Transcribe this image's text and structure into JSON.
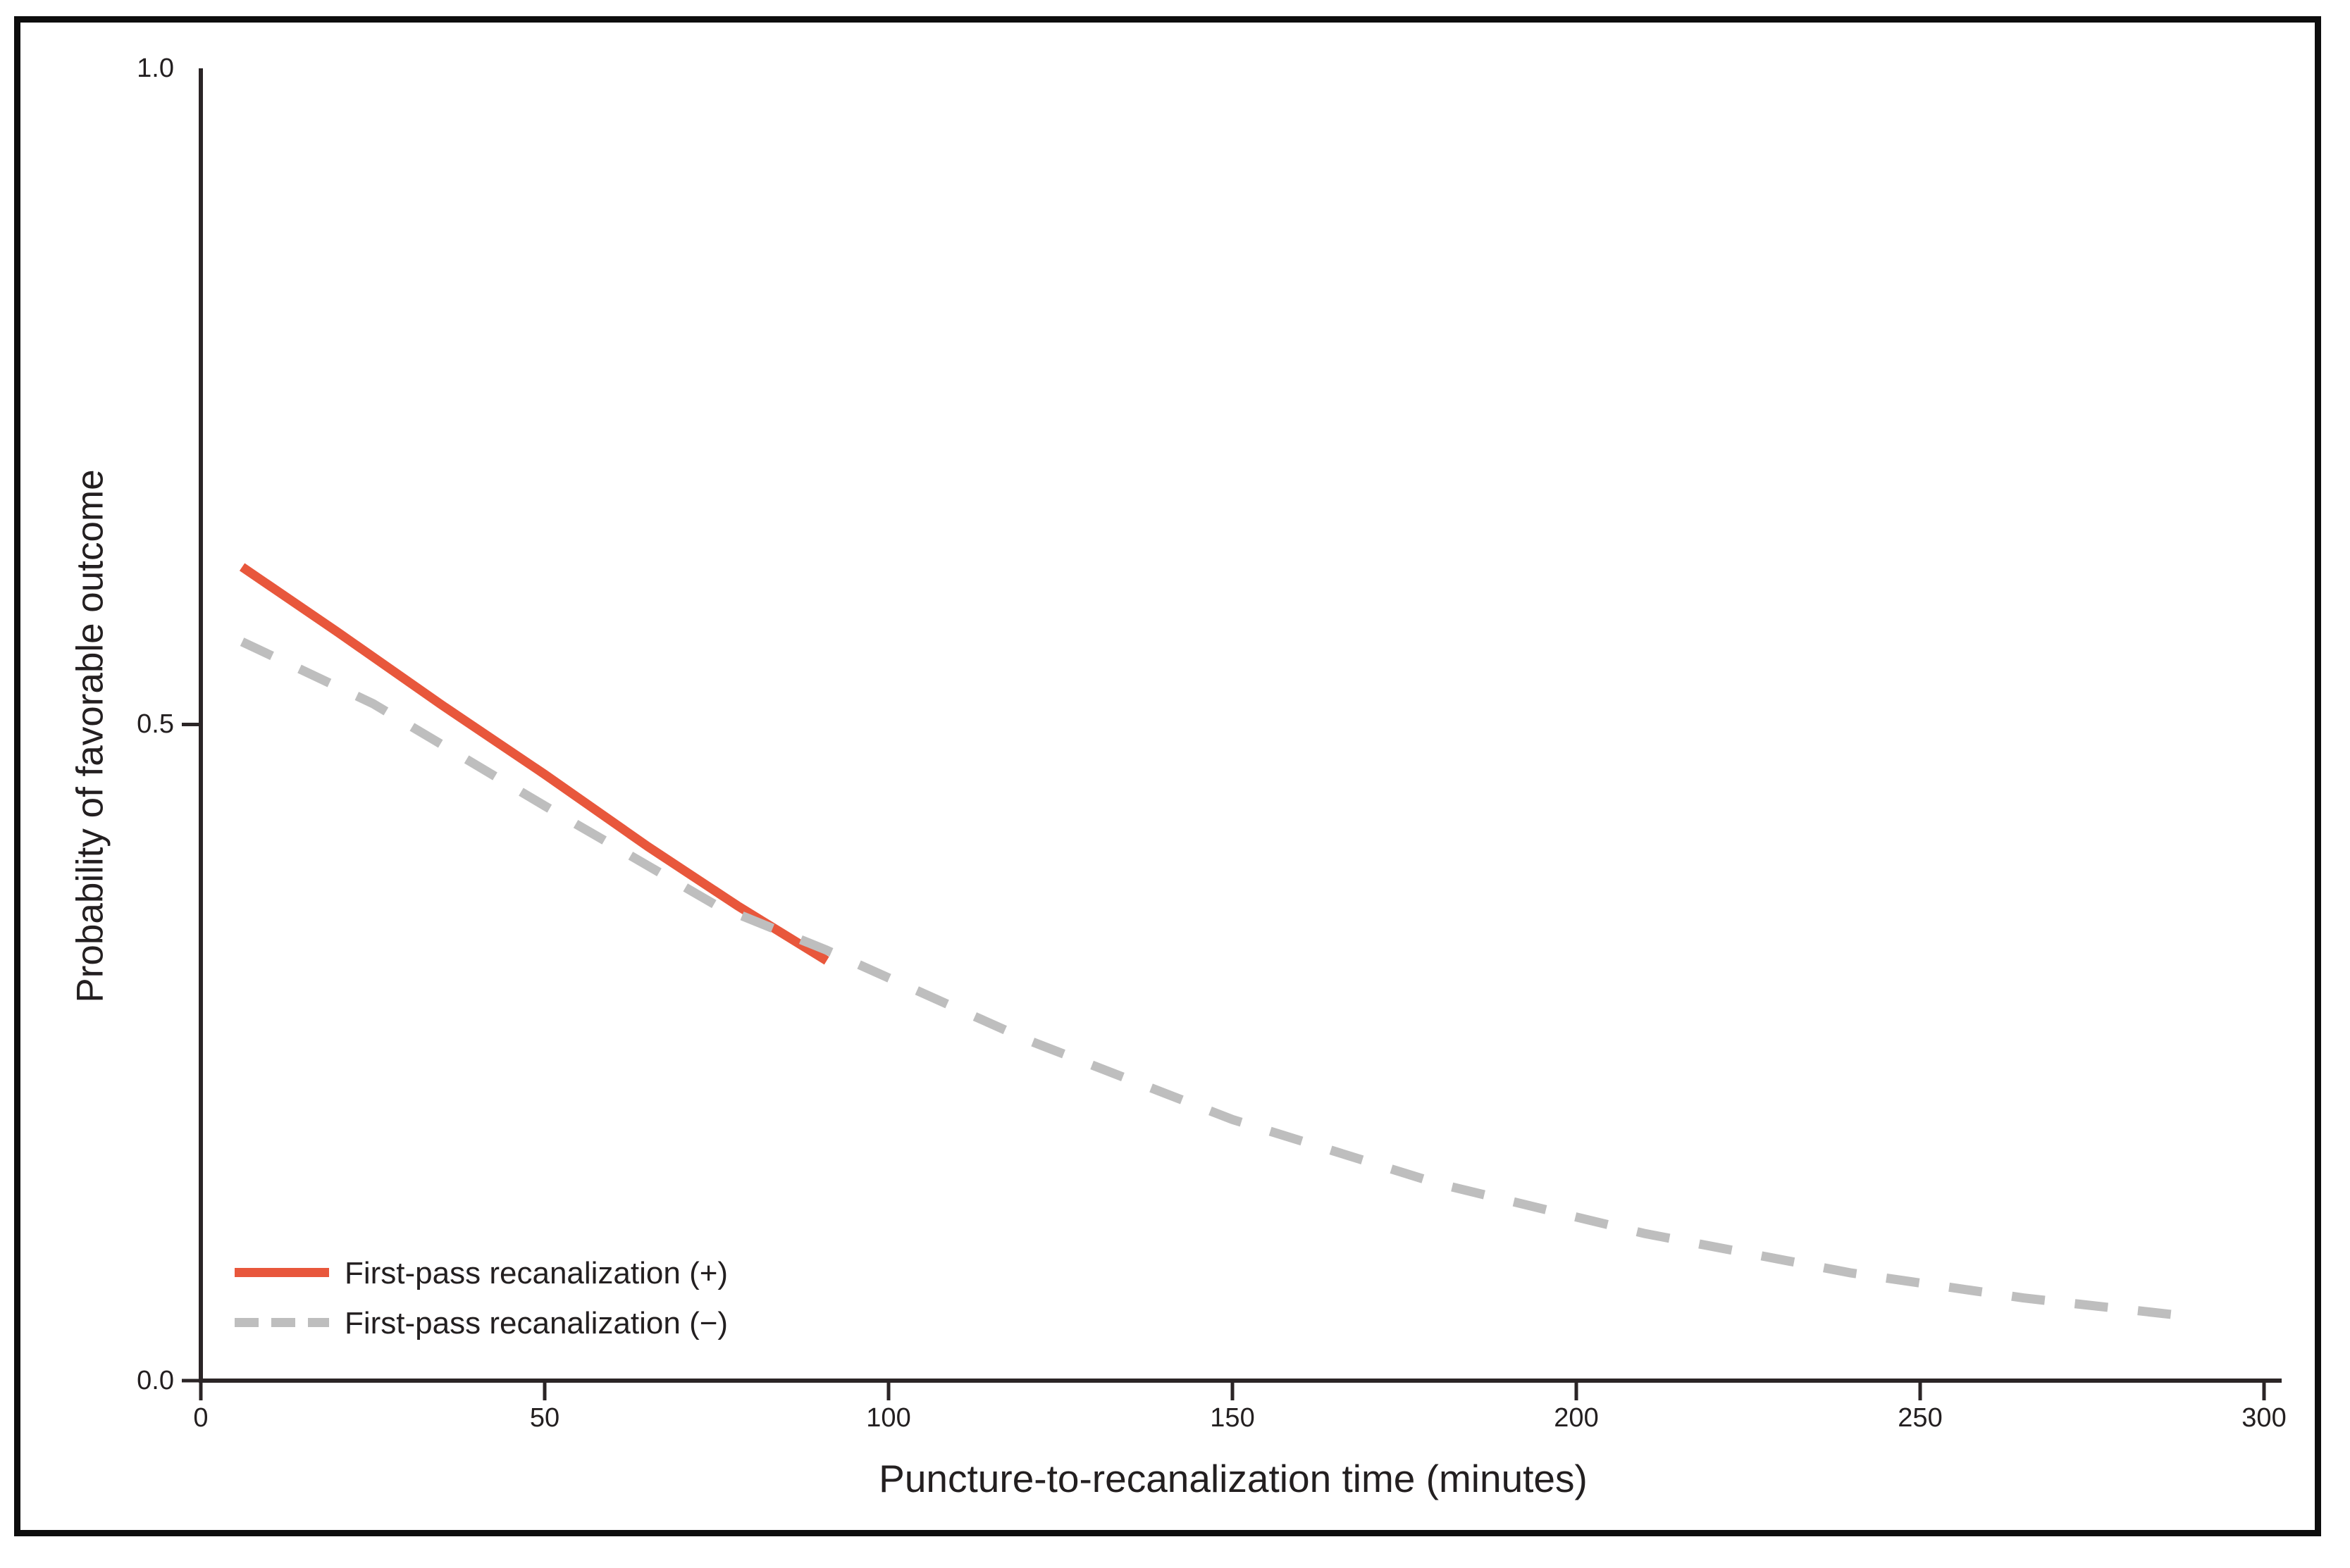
{
  "figure": {
    "background": "#ffffff",
    "frame_color": "#0d0d0d",
    "axis_color": "#2b2526",
    "text_color": "#231f20"
  },
  "chart_data": {
    "type": "line",
    "title": "",
    "xlabel": "Puncture-to-recanalization time (minutes)",
    "ylabel": "Probability of favorable outcome",
    "xlim": [
      0,
      300
    ],
    "ylim": [
      0.0,
      1.0
    ],
    "grid": false,
    "legend_position": "lower-left",
    "x_ticks": [
      {
        "value": 0,
        "label": "0"
      },
      {
        "value": 50,
        "label": "50"
      },
      {
        "value": 100,
        "label": "100"
      },
      {
        "value": 150,
        "label": "150"
      },
      {
        "value": 200,
        "label": "200"
      },
      {
        "value": 250,
        "label": "250"
      },
      {
        "value": 300,
        "label": "300"
      }
    ],
    "y_ticks": [
      {
        "value": 1.0,
        "label": "1.0",
        "tick": false
      },
      {
        "value": 0.5,
        "label": "0.5",
        "tick": true
      },
      {
        "value": 0.0,
        "label": "0.0",
        "tick": true
      }
    ],
    "series": [
      {
        "name": "First-pass recanalization (+)",
        "style": "solid",
        "color": "#e8573c",
        "data_name": "series-line-first-pass-positive",
        "points": [
          [
            6,
            0.62
          ],
          [
            20,
            0.57
          ],
          [
            35,
            0.515
          ],
          [
            50,
            0.462
          ],
          [
            65,
            0.407
          ],
          [
            78,
            0.362
          ],
          [
            91,
            0.32
          ]
        ]
      },
      {
        "name": "First-pass recanalization (−)",
        "style": "dashed",
        "color": "#bebebe",
        "data_name": "series-line-first-pass-negative",
        "points": [
          [
            6,
            0.563
          ],
          [
            25,
            0.516
          ],
          [
            50,
            0.438
          ],
          [
            75,
            0.362
          ],
          [
            91,
            0.328
          ],
          [
            120,
            0.26
          ],
          [
            150,
            0.199
          ],
          [
            180,
            0.15
          ],
          [
            210,
            0.112
          ],
          [
            240,
            0.082
          ],
          [
            265,
            0.063
          ],
          [
            289,
            0.049
          ]
        ]
      }
    ]
  }
}
